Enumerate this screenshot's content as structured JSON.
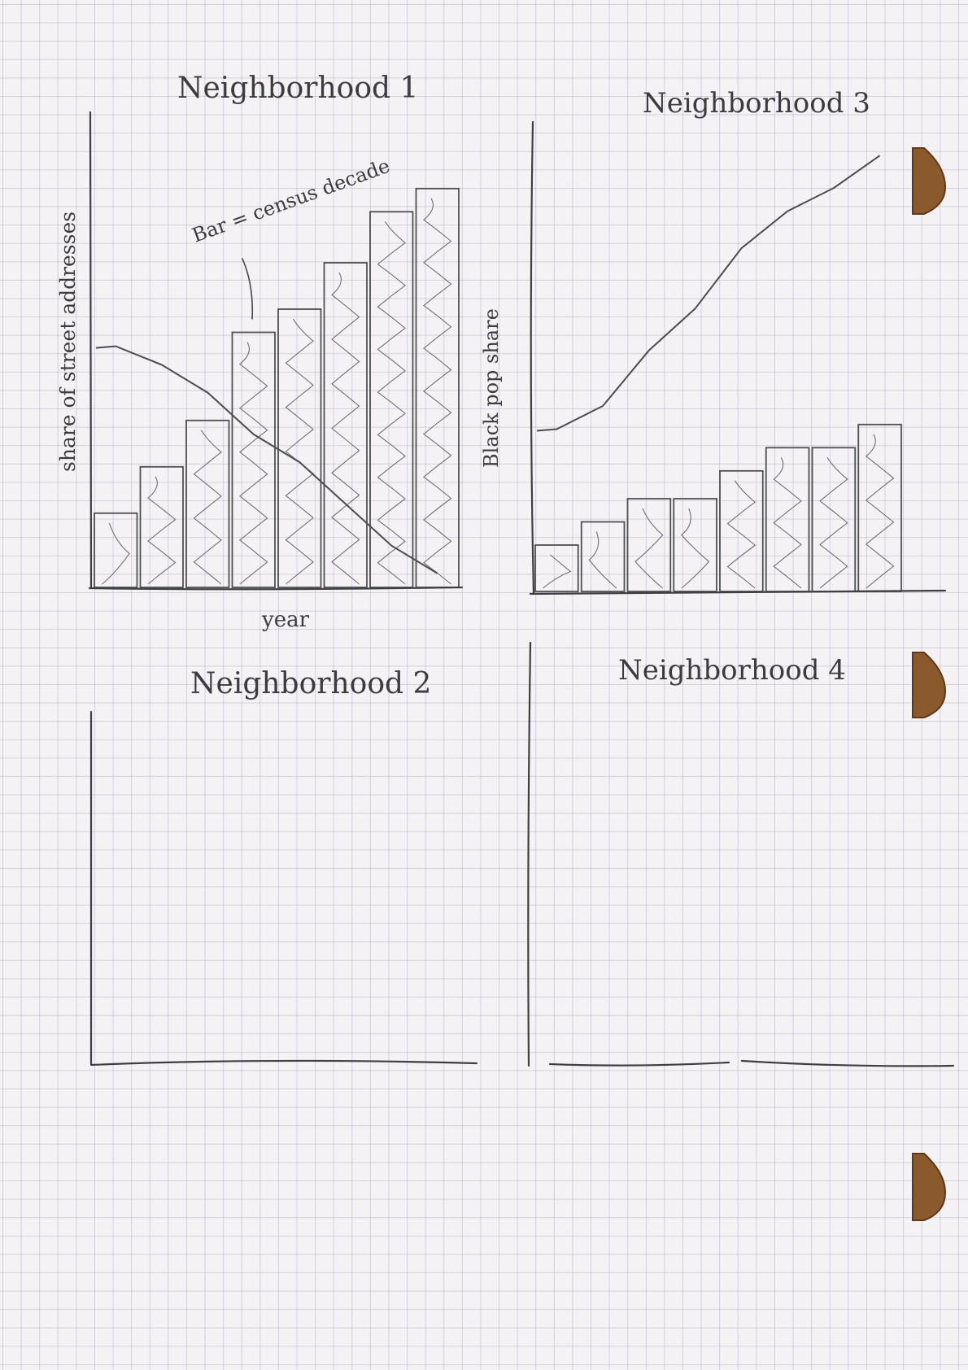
{
  "chart_data": [
    {
      "type": "bar",
      "title": "Neighborhood 1",
      "xlabel": "year",
      "ylabel": "share of street addresses",
      "y2label": "Black pop share",
      "annotation": "Bar = census decade",
      "categories": [
        "",
        "",
        "",
        "",
        "",
        "",
        "",
        ""
      ],
      "values": [
        0.16,
        0.26,
        0.36,
        0.55,
        0.6,
        0.7,
        0.81,
        0.86
      ],
      "line": [
        0.52,
        0.48,
        0.42,
        0.33,
        0.27,
        0.18,
        0.09,
        0.03
      ],
      "ylim": [
        0,
        1
      ]
    },
    {
      "type": "bar",
      "title": "Neighborhood 3",
      "values": [
        0.1,
        0.15,
        0.2,
        0.2,
        0.26,
        0.31,
        0.31,
        0.36
      ],
      "line": [
        0.35,
        0.4,
        0.52,
        0.61,
        0.74,
        0.82,
        0.87,
        0.94
      ],
      "ylim": [
        0,
        1
      ]
    },
    {
      "type": "bar",
      "title": "Neighborhood 2",
      "values": [],
      "ylim": [
        0,
        1
      ]
    },
    {
      "type": "bar",
      "title": "Neighborhood 4",
      "values": [],
      "ylim": [
        0,
        1
      ]
    }
  ]
}
